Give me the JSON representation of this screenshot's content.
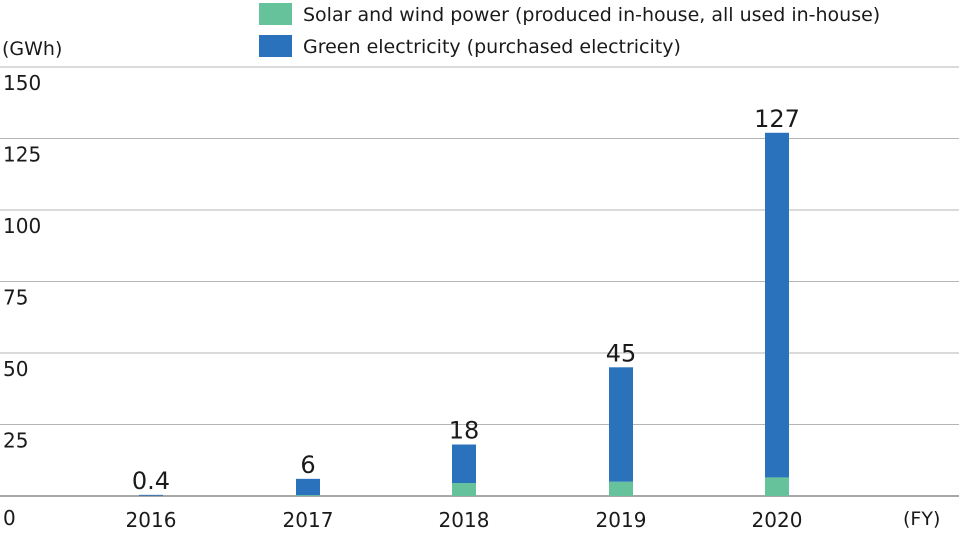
{
  "chart_data": {
    "type": "bar",
    "stacked": true,
    "ylabel": "(GWh)",
    "xlabel": "(FY)",
    "ylim": [
      0,
      150
    ],
    "yticks": [
      0,
      25,
      50,
      75,
      100,
      125,
      150
    ],
    "categories": [
      "2016",
      "2017",
      "2018",
      "2019",
      "2020"
    ],
    "series": [
      {
        "name": "Solar and wind power (produced in-house, all used in-house)",
        "color": "#66c29a",
        "values": [
          0.1,
          0.3,
          4.5,
          5,
          6.5
        ]
      },
      {
        "name": "Green electricity (purchased electricity)",
        "color": "#2b72bd",
        "values": [
          0.3,
          5.7,
          13.5,
          40,
          120.5
        ]
      }
    ],
    "totals": [
      "0.4",
      "6",
      "18",
      "45",
      "127"
    ],
    "legend_position": "top-right",
    "grid": true
  }
}
